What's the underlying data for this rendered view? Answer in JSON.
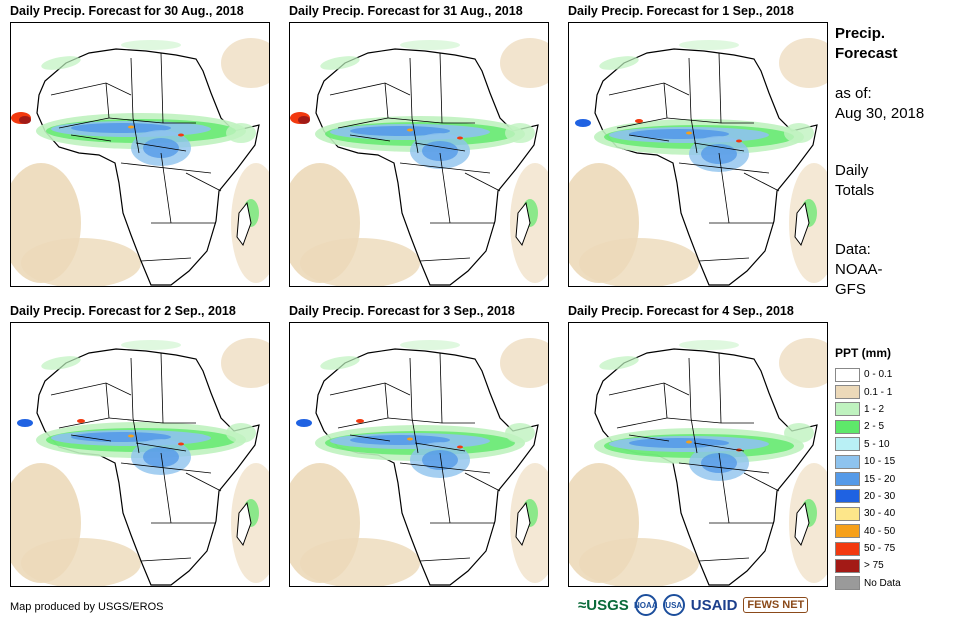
{
  "panels": [
    {
      "title": "Daily Precip. Forecast for 30 Aug., 2018",
      "west_rain": "high"
    },
    {
      "title": "Daily Precip. Forecast for 31 Aug., 2018",
      "west_rain": "high"
    },
    {
      "title": "Daily Precip. Forecast for 1 Sep., 2018",
      "west_rain": "medium"
    },
    {
      "title": "Daily Precip. Forecast for 2 Sep., 2018",
      "west_rain": "medium"
    },
    {
      "title": "Daily Precip. Forecast for 3 Sep., 2018",
      "west_rain": "medium"
    },
    {
      "title": "Daily Precip. Forecast for 4 Sep., 2018",
      "west_rain": "low"
    }
  ],
  "side": {
    "heading_line1": "Precip.",
    "heading_line2": "Forecast",
    "asof_label": "as of:",
    "asof_date": "Aug 30, 2018",
    "totals_line1": "Daily",
    "totals_line2": "Totals",
    "data_line1": "Data:",
    "data_line2": "NOAA-",
    "data_line3": "GFS"
  },
  "legend": {
    "title": "PPT (mm)",
    "items": [
      {
        "label": "0 - 0.1",
        "color": "#ffffff"
      },
      {
        "label": "0.1 - 1",
        "color": "#ecd9b9"
      },
      {
        "label": "1 - 2",
        "color": "#bff2bf"
      },
      {
        "label": "2 - 5",
        "color": "#5ee86a"
      },
      {
        "label": "5 - 10",
        "color": "#b9f0f5"
      },
      {
        "label": "10 - 15",
        "color": "#8ec3ee"
      },
      {
        "label": "15 - 20",
        "color": "#559ae8"
      },
      {
        "label": "20 - 30",
        "color": "#1f62e2"
      },
      {
        "label": "30 - 40",
        "color": "#fde68a"
      },
      {
        "label": "40 - 50",
        "color": "#f6a01a"
      },
      {
        "label": "50 - 75",
        "color": "#f2390f"
      },
      {
        "label": "> 75",
        "color": "#a31a16"
      },
      {
        "label": "No Data",
        "color": "#9a9a9a"
      }
    ]
  },
  "credit": "Map produced by USGS/EROS",
  "logos": {
    "usgs": "≈USGS",
    "noaa": "NOAA",
    "usaid_seal": "USA",
    "usaid": "USAID",
    "fews": "FEWS NET"
  }
}
